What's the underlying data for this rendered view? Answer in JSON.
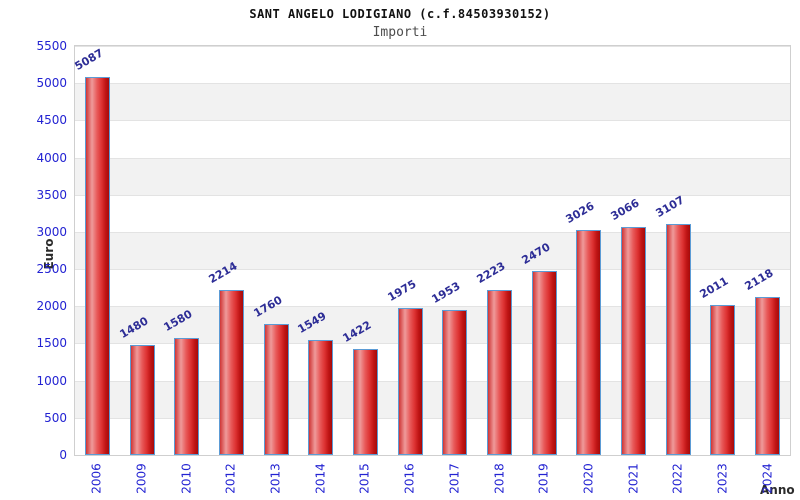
{
  "header": {
    "title": "SANT ANGELO LODIGIANO (c.f.84503930152)",
    "subtitle": "Importi"
  },
  "chart_data": {
    "type": "bar",
    "title": "SANT ANGELO LODIGIANO (c.f.84503930152)",
    "subtitle": "Importi",
    "xlabel": "Anno",
    "ylabel": "Euro",
    "categories": [
      "2006",
      "2009",
      "2010",
      "2012",
      "2013",
      "2014",
      "2015",
      "2016",
      "2017",
      "2018",
      "2019",
      "2020",
      "2021",
      "2022",
      "2023",
      "2024"
    ],
    "values": [
      5087,
      1480,
      1580,
      2214,
      1760,
      1549,
      1422,
      1975,
      1953,
      2223,
      2470,
      3026,
      3066,
      3107,
      2011,
      2118
    ],
    "ylim": [
      0,
      5500
    ],
    "y_ticks": [
      0,
      500,
      1000,
      1500,
      2000,
      2500,
      3000,
      3500,
      4000,
      4500,
      5000,
      5500
    ],
    "grid": true,
    "legend": "none",
    "value_labels_rotation_deg": -30,
    "colors": {
      "bar_fill_highlight": "#ef9a9a",
      "bar_fill_main": "#dd3232",
      "bar_fill_dark": "#a60b0b",
      "bar_border": "#5b9bd5",
      "tick_label": "#2323d2",
      "value_label": "#2d2d96",
      "band": "#f2f2f2",
      "gridline": "#e3e3e3",
      "plot_border": "#cfcfcf",
      "axis_title": "#2b2b2b",
      "subtitle_text": "#4d4d4d"
    }
  }
}
